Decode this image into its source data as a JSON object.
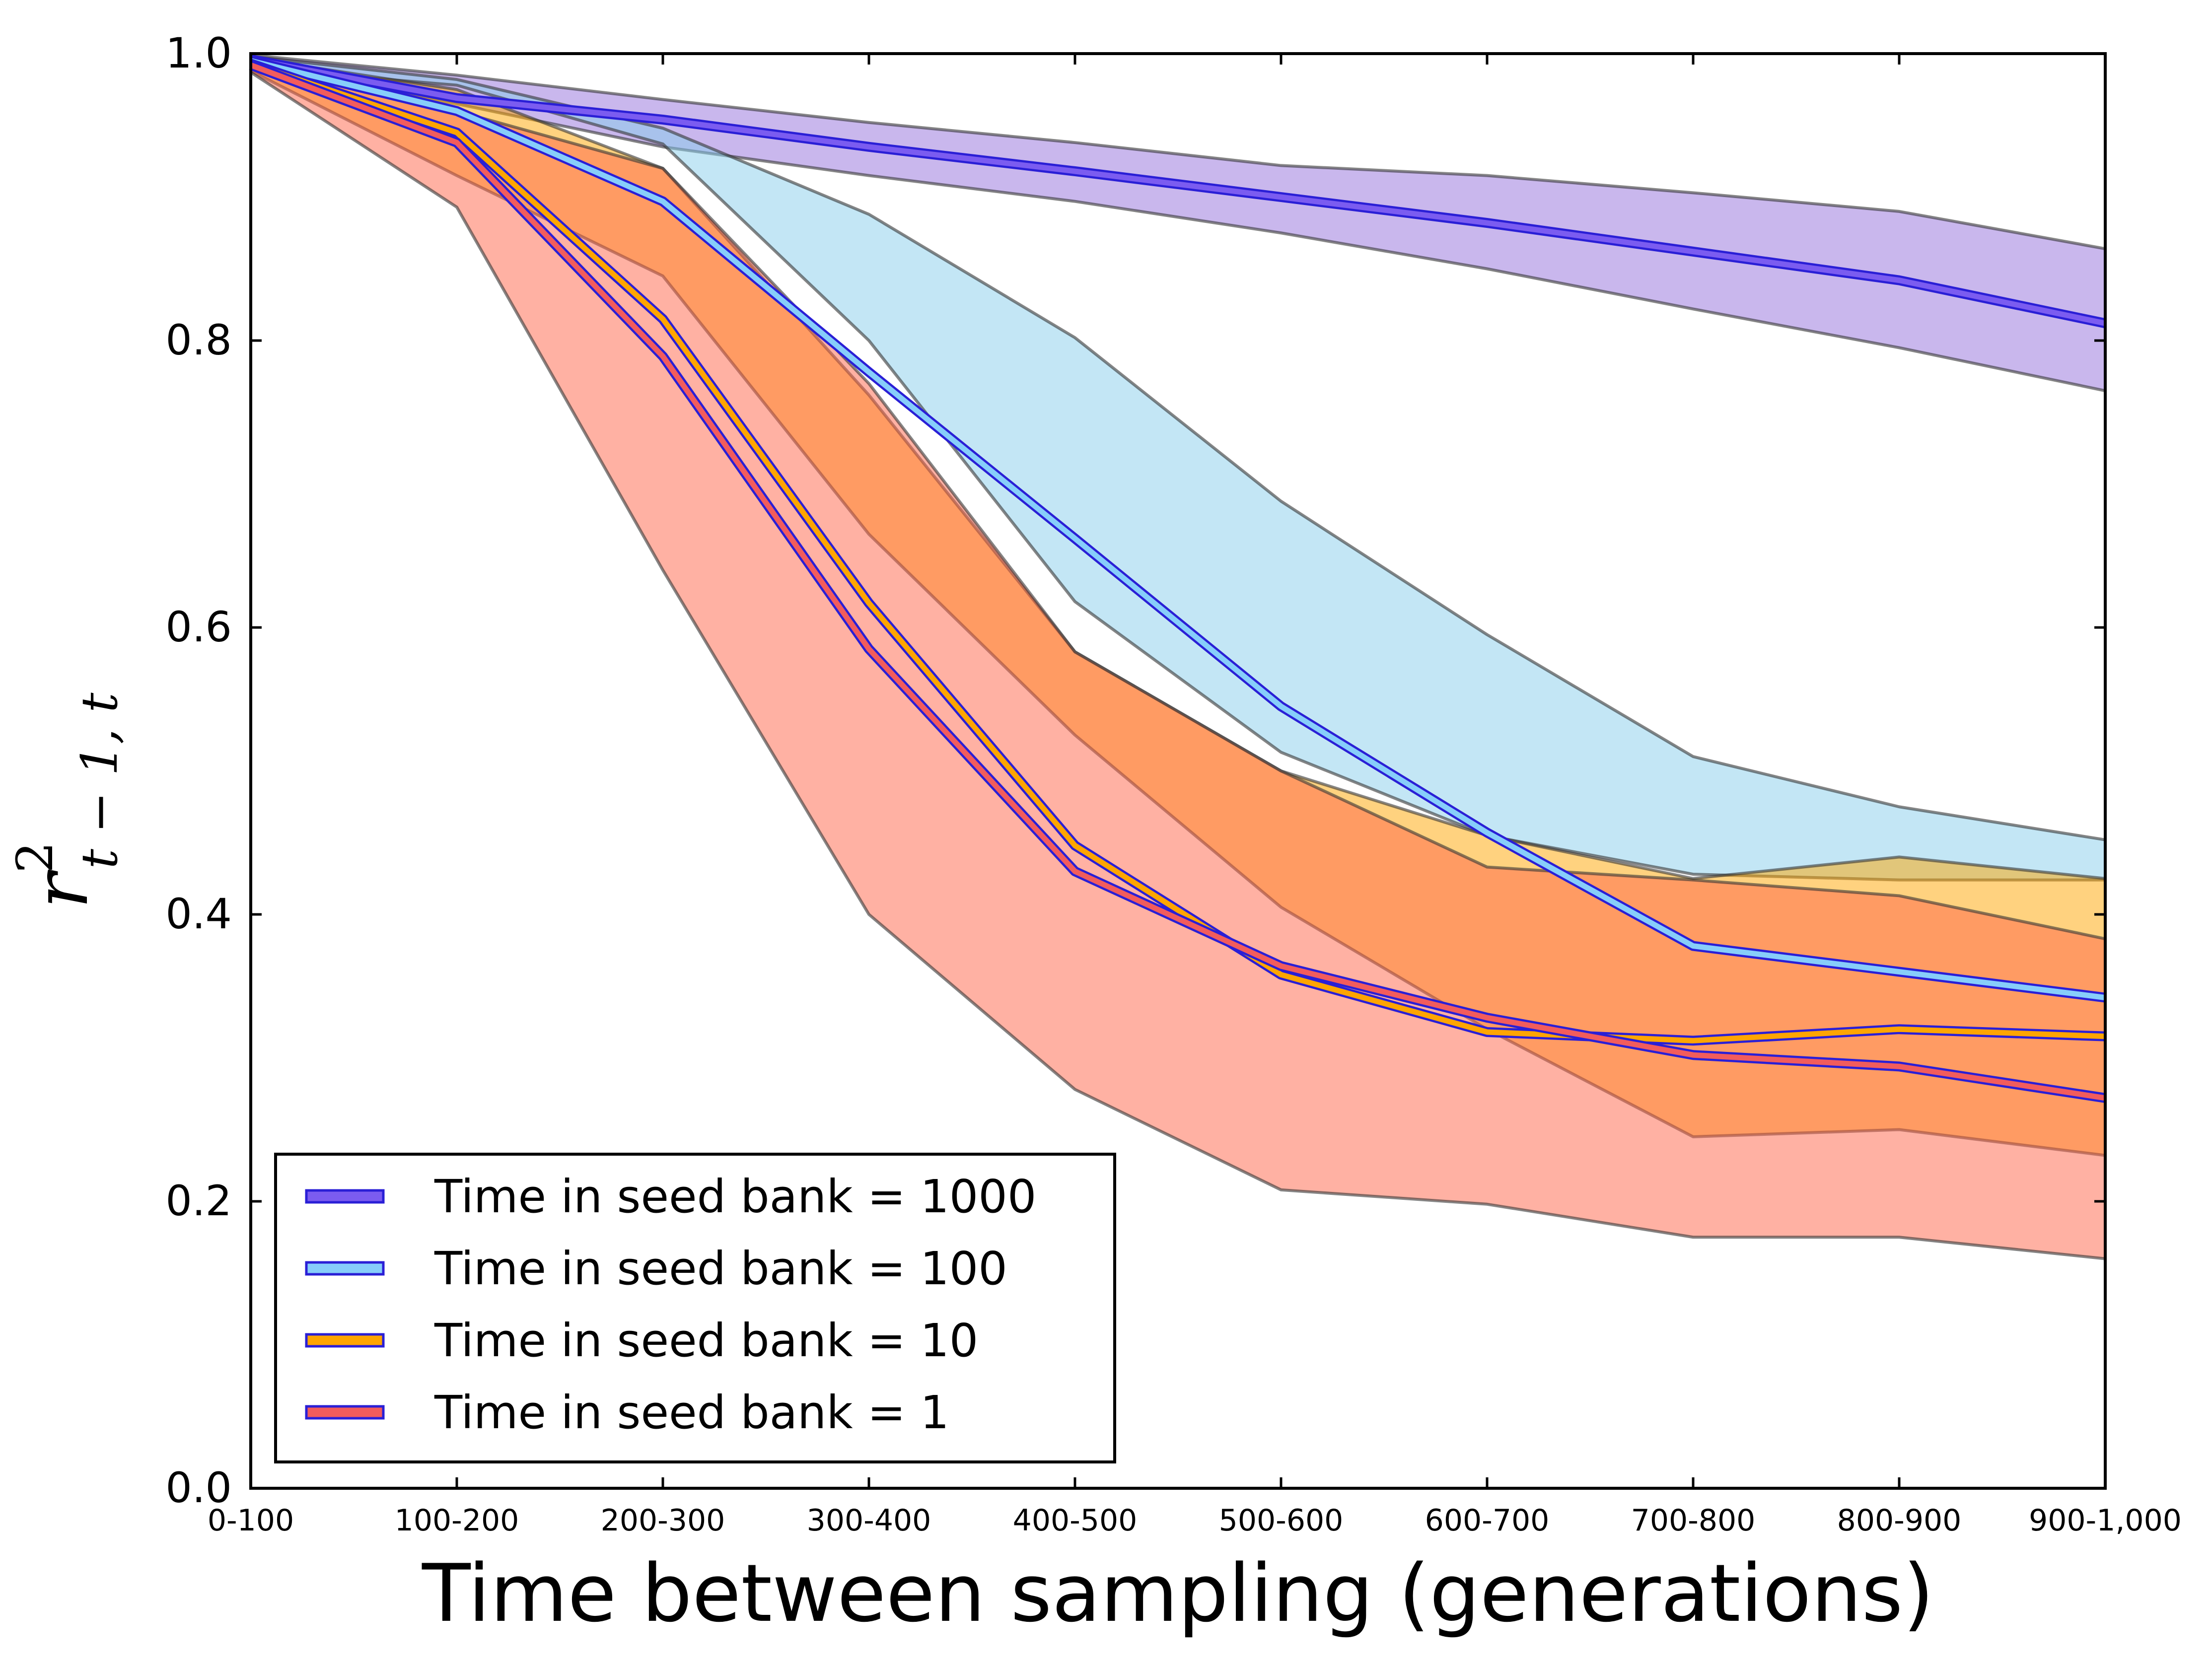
{
  "chart_data": {
    "type": "line",
    "title": "",
    "xlabel": "Time between sampling (generations)",
    "ylabel": "r²_{t−1, t}",
    "ylabel_parts": {
      "base": "r",
      "sup": "2",
      "sub": "t − 1, t"
    },
    "categories": [
      "0-100",
      "100-200",
      "200-300",
      "300-400",
      "400-500",
      "500-600",
      "600-700",
      "700-800",
      "800-900",
      "900-1,000"
    ],
    "ylim": [
      0.0,
      1.0
    ],
    "yticks": [
      "0.0",
      "0.2",
      "0.4",
      "0.6",
      "0.8",
      "1.0"
    ],
    "grid": false,
    "legend_position": "lower-left",
    "series": [
      {
        "name": "Time in seed bank = 1000",
        "color": "#7b5cf0",
        "edge_color": "#2a1fd6",
        "band_color": "#9370db",
        "upper": [
          0.999,
          0.985,
          0.968,
          0.952,
          0.938,
          0.922,
          0.915,
          0.903,
          0.89,
          0.864
        ],
        "mean": [
          0.996,
          0.969,
          0.954,
          0.935,
          0.918,
          0.9,
          0.882,
          0.862,
          0.842,
          0.812
        ],
        "lower": [
          0.992,
          0.965,
          0.935,
          0.915,
          0.897,
          0.875,
          0.85,
          0.822,
          0.795,
          0.765
        ]
      },
      {
        "name": "Time in seed bank = 100",
        "color": "#87cefa",
        "edge_color": "#2a1fd6",
        "band_color": "#87ceeb",
        "upper": [
          0.998,
          0.982,
          0.948,
          0.888,
          0.802,
          0.688,
          0.595,
          0.51,
          0.475,
          0.452
        ],
        "mean": [
          0.995,
          0.96,
          0.897,
          0.778,
          0.662,
          0.545,
          0.457,
          0.378,
          0.36,
          0.342
        ],
        "lower": [
          0.99,
          0.978,
          0.937,
          0.8,
          0.618,
          0.513,
          0.455,
          0.428,
          0.424,
          0.424
        ]
      },
      {
        "name": "Time in seed bank = 10",
        "color": "#ffa500",
        "edge_color": "#2a1fd6",
        "band_color": "#ffa500",
        "upper": [
          0.997,
          0.975,
          0.92,
          0.762,
          0.583,
          0.5,
          0.455,
          0.425,
          0.44,
          0.425
        ],
        "mean": [
          0.993,
          0.945,
          0.815,
          0.617,
          0.448,
          0.358,
          0.318,
          0.312,
          0.32,
          0.315
        ],
        "lower": [
          0.988,
          0.915,
          0.845,
          0.665,
          0.525,
          0.405,
          0.32,
          0.245,
          0.25,
          0.232
        ]
      },
      {
        "name": "Time in seed bank = 1",
        "color": "#f25c5c",
        "edge_color": "#2a1fd6",
        "band_color": "#ff6347",
        "upper": [
          0.996,
          0.96,
          0.92,
          0.77,
          0.583,
          0.5,
          0.433,
          0.424,
          0.413,
          0.383
        ],
        "mean": [
          0.992,
          0.938,
          0.789,
          0.585,
          0.43,
          0.364,
          0.328,
          0.302,
          0.294,
          0.272
        ],
        "lower": [
          0.987,
          0.893,
          0.64,
          0.4,
          0.278,
          0.208,
          0.198,
          0.175,
          0.175,
          0.16
        ]
      }
    ]
  }
}
